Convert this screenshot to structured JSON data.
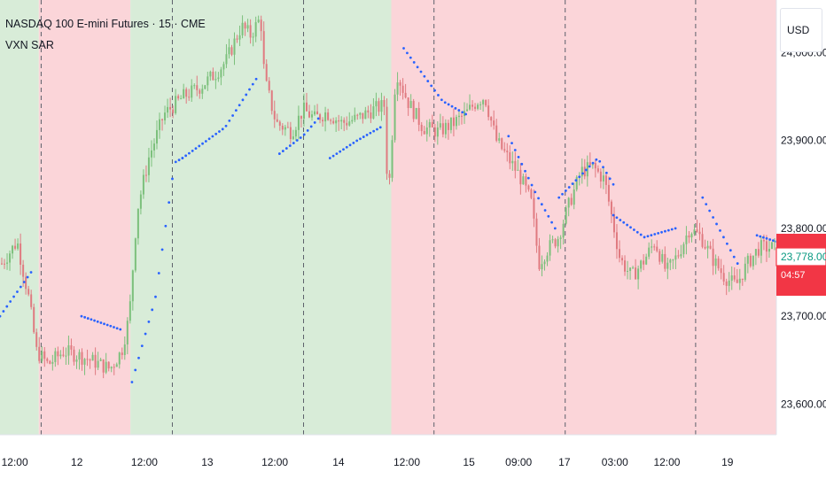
{
  "header": {
    "title": "NASDAQ 100 E-mini Futures · 15 · CME",
    "indicator": "VXN SAR"
  },
  "price_scale": {
    "currency": "USD",
    "last_price_label": "23,778.00",
    "countdown_label": "04:57"
  },
  "colors": {
    "bull_region": "#d8ecd8",
    "bear_region": "#fbd5d9",
    "candle_up": "#7cc07c",
    "candle_down": "#e07a80",
    "sar_dot": "#2962ff",
    "price_tag_red": "#f23645"
  },
  "chart_data": {
    "type": "candlestick",
    "title": "NASDAQ 100 E-mini Futures · 15 · CME",
    "indicator": "VXN SAR",
    "x_tick_labels": [
      "12:00",
      "12",
      "12:00",
      "13",
      "12:00",
      "14",
      "12:00",
      "15",
      "09:00",
      "17",
      "03:00",
      "12:00",
      "19"
    ],
    "y_tick_labels": [
      "24,000.00",
      "23,900.00",
      "23,800.00",
      "23,700.00",
      "23,600.00"
    ],
    "ylim": [
      23565,
      24060
    ],
    "y_ticks": [
      24000,
      23900,
      23800,
      23700,
      23600
    ],
    "regime_regions": [
      {
        "regime": "bull",
        "start": 0,
        "end": 0.05
      },
      {
        "regime": "bear",
        "start": 0.05,
        "end": 0.168
      },
      {
        "regime": "bull",
        "start": 0.168,
        "end": 0.504
      },
      {
        "regime": "bear",
        "start": 0.504,
        "end": 1.0
      }
    ],
    "session_breaks": [
      0.053,
      0.222,
      0.391,
      0.559,
      0.728,
      0.896
    ],
    "price_path": [
      [
        0.0,
        23760
      ],
      [
        0.02,
        23785
      ],
      [
        0.035,
        23720
      ],
      [
        0.045,
        23660
      ],
      [
        0.06,
        23645
      ],
      [
        0.08,
        23660
      ],
      [
        0.1,
        23655
      ],
      [
        0.12,
        23648
      ],
      [
        0.14,
        23640
      ],
      [
        0.155,
        23660
      ],
      [
        0.165,
        23700
      ],
      [
        0.175,
        23820
      ],
      [
        0.19,
        23880
      ],
      [
        0.21,
        23930
      ],
      [
        0.235,
        23950
      ],
      [
        0.255,
        23960
      ],
      [
        0.275,
        23975
      ],
      [
        0.29,
        23990
      ],
      [
        0.3,
        24010
      ],
      [
        0.31,
        24030
      ],
      [
        0.322,
        24020
      ],
      [
        0.335,
        24040
      ],
      [
        0.34,
        23970
      ],
      [
        0.355,
        23920
      ],
      [
        0.375,
        23910
      ],
      [
        0.39,
        23935
      ],
      [
        0.405,
        23925
      ],
      [
        0.42,
        23932
      ],
      [
        0.44,
        23920
      ],
      [
        0.46,
        23925
      ],
      [
        0.48,
        23935
      ],
      [
        0.495,
        23940
      ],
      [
        0.5,
        23830
      ],
      [
        0.51,
        23980
      ],
      [
        0.525,
        23945
      ],
      [
        0.545,
        23915
      ],
      [
        0.565,
        23910
      ],
      [
        0.585,
        23920
      ],
      [
        0.6,
        23930
      ],
      [
        0.615,
        23945
      ],
      [
        0.625,
        23950
      ],
      [
        0.64,
        23900
      ],
      [
        0.655,
        23880
      ],
      [
        0.67,
        23860
      ],
      [
        0.685,
        23830
      ],
      [
        0.695,
        23760
      ],
      [
        0.705,
        23775
      ],
      [
        0.72,
        23790
      ],
      [
        0.735,
        23830
      ],
      [
        0.75,
        23865
      ],
      [
        0.765,
        23870
      ],
      [
        0.78,
        23855
      ],
      [
        0.79,
        23810
      ],
      [
        0.8,
        23765
      ],
      [
        0.815,
        23745
      ],
      [
        0.83,
        23762
      ],
      [
        0.845,
        23785
      ],
      [
        0.86,
        23750
      ],
      [
        0.875,
        23770
      ],
      [
        0.89,
        23800
      ],
      [
        0.905,
        23790
      ],
      [
        0.92,
        23765
      ],
      [
        0.935,
        23745
      ],
      [
        0.95,
        23735
      ],
      [
        0.965,
        23760
      ],
      [
        0.98,
        23778
      ],
      [
        1.0,
        23778
      ]
    ],
    "sar_segments": [
      {
        "side": "below",
        "points": [
          [
            0.0,
            23700
          ],
          [
            0.04,
            23750
          ]
        ]
      },
      {
        "side": "above",
        "points": [
          [
            0.105,
            23700
          ],
          [
            0.155,
            23685
          ]
        ]
      },
      {
        "side": "below",
        "points": [
          [
            0.17,
            23625
          ],
          [
            0.2,
            23720
          ],
          [
            0.225,
            23875
          ],
          [
            0.235,
            23880
          ]
        ]
      },
      {
        "side": "below",
        "points": [
          [
            0.235,
            23880
          ],
          [
            0.29,
            23915
          ],
          [
            0.33,
            23970
          ]
        ]
      },
      {
        "side": "below",
        "points": [
          [
            0.36,
            23885
          ],
          [
            0.39,
            23905
          ],
          [
            0.41,
            23925
          ]
        ]
      },
      {
        "side": "below",
        "points": [
          [
            0.425,
            23880
          ],
          [
            0.46,
            23900
          ],
          [
            0.49,
            23915
          ]
        ]
      },
      {
        "side": "above",
        "points": [
          [
            0.52,
            24005
          ],
          [
            0.57,
            23945
          ],
          [
            0.6,
            23930
          ]
        ]
      },
      {
        "side": "above",
        "points": [
          [
            0.655,
            23905
          ],
          [
            0.69,
            23840
          ],
          [
            0.715,
            23800
          ]
        ]
      },
      {
        "side": "below",
        "points": [
          [
            0.72,
            23835
          ],
          [
            0.77,
            23880
          ],
          [
            0.79,
            23850
          ]
        ]
      },
      {
        "side": "above",
        "points": [
          [
            0.79,
            23815
          ],
          [
            0.83,
            23790
          ],
          [
            0.87,
            23800
          ]
        ]
      },
      {
        "side": "above",
        "points": [
          [
            0.905,
            23835
          ],
          [
            0.95,
            23760
          ]
        ]
      },
      {
        "side": "above",
        "points": [
          [
            0.975,
            23792
          ],
          [
            1.0,
            23785
          ]
        ]
      }
    ]
  }
}
